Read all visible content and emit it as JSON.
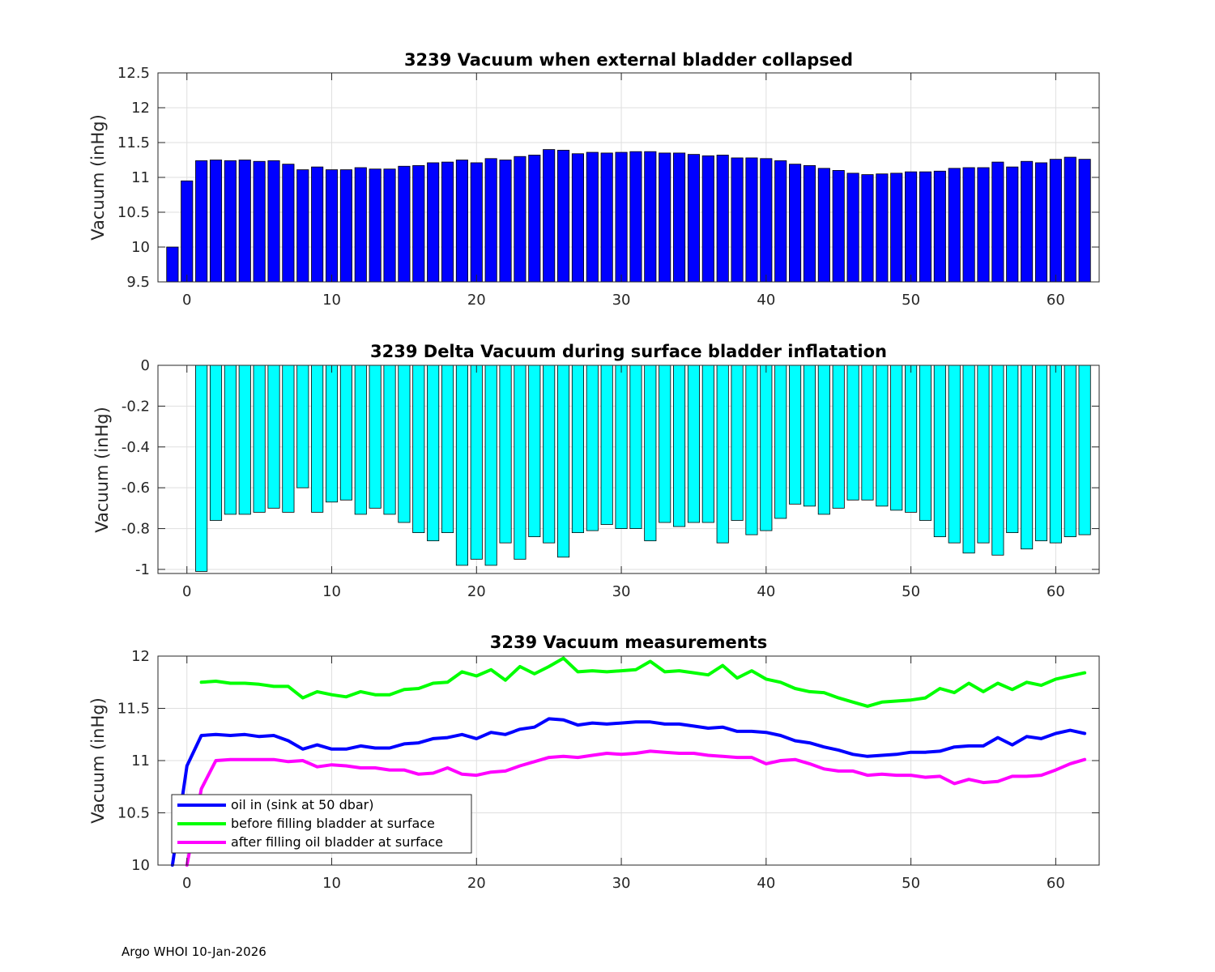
{
  "footer": "Argo WHOI 10-Jan-2026",
  "colors": {
    "bar_top": "#0000ff",
    "bar_mid": "#00ffff",
    "oil_in": "#0000ff",
    "before_fill": "#00ff00",
    "after_fill": "#ff00ff",
    "grid": "#dfdfdf"
  },
  "chart_data": [
    {
      "type": "bar",
      "title": "3239 Vacuum when external bladder collapsed",
      "xlabel": "",
      "ylabel": "Vacuum (inHg)",
      "xlim": [
        -2,
        63
      ],
      "ylim": [
        9.5,
        12.5
      ],
      "grid": true,
      "xticks": [
        0,
        10,
        20,
        30,
        40,
        50,
        60
      ],
      "yticks": [
        9.5,
        10,
        10.5,
        11,
        11.5,
        12,
        12.5
      ],
      "ytick_labels": [
        "9.5",
        "10",
        "10.5",
        "11",
        "11.5",
        "12",
        "12.5"
      ],
      "x": [
        -1,
        0,
        1,
        2,
        3,
        4,
        5,
        6,
        7,
        8,
        9,
        10,
        11,
        12,
        13,
        14,
        15,
        16,
        17,
        18,
        19,
        20,
        21,
        22,
        23,
        24,
        25,
        26,
        27,
        28,
        29,
        30,
        31,
        32,
        33,
        34,
        35,
        36,
        37,
        38,
        39,
        40,
        41,
        42,
        43,
        44,
        45,
        46,
        47,
        48,
        49,
        50,
        51,
        52,
        53,
        54,
        55,
        56,
        57,
        58,
        59,
        60,
        61,
        62
      ],
      "values": [
        10.0,
        10.95,
        11.24,
        11.25,
        11.24,
        11.25,
        11.23,
        11.24,
        11.19,
        11.11,
        11.15,
        11.11,
        11.11,
        11.14,
        11.12,
        11.12,
        11.16,
        11.17,
        11.21,
        11.22,
        11.25,
        11.21,
        11.27,
        11.25,
        11.3,
        11.32,
        11.4,
        11.39,
        11.34,
        11.36,
        11.35,
        11.36,
        11.37,
        11.37,
        11.35,
        11.35,
        11.33,
        11.31,
        11.32,
        11.28,
        11.28,
        11.27,
        11.24,
        11.19,
        11.17,
        11.13,
        11.1,
        11.06,
        11.04,
        11.05,
        11.06,
        11.08,
        11.08,
        11.09,
        11.13,
        11.14,
        11.14,
        11.22,
        11.15,
        11.23,
        11.21,
        11.26,
        11.29,
        11.26
      ]
    },
    {
      "type": "bar",
      "title": "3239 Delta Vacuum during surface bladder inflatation",
      "xlabel": "",
      "ylabel": "Vacuum (inHg)",
      "xlim": [
        -2,
        63
      ],
      "ylim": [
        -1.02,
        0
      ],
      "grid": true,
      "xticks": [
        0,
        10,
        20,
        30,
        40,
        50,
        60
      ],
      "yticks": [
        -1,
        -0.8,
        -0.6,
        -0.4,
        -0.2,
        0
      ],
      "ytick_labels": [
        "-1",
        "-0.8",
        "-0.6",
        "-0.4",
        "-0.2",
        "0"
      ],
      "x": [
        1,
        2,
        3,
        4,
        5,
        6,
        7,
        8,
        9,
        10,
        11,
        12,
        13,
        14,
        15,
        16,
        17,
        18,
        19,
        20,
        21,
        22,
        23,
        24,
        25,
        26,
        27,
        28,
        29,
        30,
        31,
        32,
        33,
        34,
        35,
        36,
        37,
        38,
        39,
        40,
        41,
        42,
        43,
        44,
        45,
        46,
        47,
        48,
        49,
        50,
        51,
        52,
        53,
        54,
        55,
        56,
        57,
        58,
        59,
        60,
        61,
        62
      ],
      "values": [
        -1.01,
        -0.76,
        -0.73,
        -0.73,
        -0.72,
        -0.7,
        -0.72,
        -0.6,
        -0.72,
        -0.67,
        -0.66,
        -0.73,
        -0.7,
        -0.73,
        -0.77,
        -0.82,
        -0.86,
        -0.82,
        -0.98,
        -0.95,
        -0.98,
        -0.87,
        -0.95,
        -0.84,
        -0.87,
        -0.94,
        -0.82,
        -0.81,
        -0.78,
        -0.8,
        -0.8,
        -0.86,
        -0.77,
        -0.79,
        -0.77,
        -0.77,
        -0.87,
        -0.76,
        -0.83,
        -0.81,
        -0.75,
        -0.68,
        -0.69,
        -0.73,
        -0.7,
        -0.66,
        -0.66,
        -0.69,
        -0.71,
        -0.72,
        -0.76,
        -0.84,
        -0.87,
        -0.92,
        -0.87,
        -0.93,
        -0.82,
        -0.9,
        -0.86,
        -0.87,
        -0.84,
        -0.83
      ]
    },
    {
      "type": "line",
      "title": "3239 Vacuum measurements",
      "xlabel": "",
      "ylabel": "Vacuum (inHg)",
      "xlim": [
        -2,
        63
      ],
      "ylim": [
        10,
        12
      ],
      "grid": true,
      "xticks": [
        0,
        10,
        20,
        30,
        40,
        50,
        60
      ],
      "yticks": [
        10,
        10.5,
        11,
        11.5,
        12
      ],
      "ytick_labels": [
        "10",
        "10.5",
        "11",
        "11.5",
        "12"
      ],
      "legend_position": "bottom-left",
      "series": [
        {
          "name": "oil in (sink at 50 dbar)",
          "color": "#0000ff",
          "x": [
            -1,
            0,
            1,
            2,
            3,
            4,
            5,
            6,
            7,
            8,
            9,
            10,
            11,
            12,
            13,
            14,
            15,
            16,
            17,
            18,
            19,
            20,
            21,
            22,
            23,
            24,
            25,
            26,
            27,
            28,
            29,
            30,
            31,
            32,
            33,
            34,
            35,
            36,
            37,
            38,
            39,
            40,
            41,
            42,
            43,
            44,
            45,
            46,
            47,
            48,
            49,
            50,
            51,
            52,
            53,
            54,
            55,
            56,
            57,
            58,
            59,
            60,
            61,
            62
          ],
          "values": [
            10.0,
            10.95,
            11.24,
            11.25,
            11.24,
            11.25,
            11.23,
            11.24,
            11.19,
            11.11,
            11.15,
            11.11,
            11.11,
            11.14,
            11.12,
            11.12,
            11.16,
            11.17,
            11.21,
            11.22,
            11.25,
            11.21,
            11.27,
            11.25,
            11.3,
            11.32,
            11.4,
            11.39,
            11.34,
            11.36,
            11.35,
            11.36,
            11.37,
            11.37,
            11.35,
            11.35,
            11.33,
            11.31,
            11.32,
            11.28,
            11.28,
            11.27,
            11.24,
            11.19,
            11.17,
            11.13,
            11.1,
            11.06,
            11.04,
            11.05,
            11.06,
            11.08,
            11.08,
            11.09,
            11.13,
            11.14,
            11.14,
            11.22,
            11.15,
            11.23,
            11.21,
            11.26,
            11.29,
            11.26
          ]
        },
        {
          "name": "before filling bladder at surface",
          "color": "#00ff00",
          "x": [
            1,
            2,
            3,
            4,
            5,
            6,
            7,
            8,
            9,
            10,
            11,
            12,
            13,
            14,
            15,
            16,
            17,
            18,
            19,
            20,
            21,
            22,
            23,
            24,
            25,
            26,
            27,
            28,
            29,
            30,
            31,
            32,
            33,
            34,
            35,
            36,
            37,
            38,
            39,
            40,
            41,
            42,
            43,
            44,
            45,
            46,
            47,
            48,
            49,
            50,
            51,
            52,
            53,
            54,
            55,
            56,
            57,
            58,
            59,
            60,
            61,
            62
          ],
          "values": [
            11.75,
            11.76,
            11.74,
            11.74,
            11.73,
            11.71,
            11.71,
            11.6,
            11.66,
            11.63,
            11.61,
            11.66,
            11.63,
            11.63,
            11.68,
            11.69,
            11.74,
            11.75,
            11.85,
            11.81,
            11.87,
            11.77,
            11.9,
            11.83,
            11.9,
            11.98,
            11.85,
            11.86,
            11.85,
            11.86,
            11.87,
            11.95,
            11.85,
            11.86,
            11.84,
            11.82,
            11.91,
            11.79,
            11.86,
            11.78,
            11.75,
            11.69,
            11.66,
            11.65,
            11.6,
            11.56,
            11.52,
            11.56,
            11.57,
            11.58,
            11.6,
            11.69,
            11.65,
            11.74,
            11.66,
            11.74,
            11.68,
            11.75,
            11.72,
            11.78,
            11.81,
            11.84
          ]
        },
        {
          "name": "after filling oil bladder at surface",
          "color": "#ff00ff",
          "x": [
            0,
            1,
            2,
            3,
            4,
            5,
            6,
            7,
            8,
            9,
            10,
            11,
            12,
            13,
            14,
            15,
            16,
            17,
            18,
            19,
            20,
            21,
            22,
            23,
            24,
            25,
            26,
            27,
            28,
            29,
            30,
            31,
            32,
            33,
            34,
            35,
            36,
            37,
            38,
            39,
            40,
            41,
            42,
            43,
            44,
            45,
            46,
            47,
            48,
            49,
            50,
            51,
            52,
            53,
            54,
            55,
            56,
            57,
            58,
            59,
            60,
            61,
            62
          ],
          "values": [
            10.0,
            10.73,
            11.0,
            11.01,
            11.01,
            11.01,
            11.01,
            10.99,
            11.0,
            10.94,
            10.96,
            10.95,
            10.93,
            10.93,
            10.91,
            10.91,
            10.87,
            10.88,
            10.93,
            10.87,
            10.86,
            10.89,
            10.9,
            10.95,
            10.99,
            11.03,
            11.04,
            11.03,
            11.05,
            11.07,
            11.06,
            11.07,
            11.09,
            11.08,
            11.07,
            11.07,
            11.05,
            11.04,
            11.03,
            11.03,
            10.97,
            11.0,
            11.01,
            10.97,
            10.92,
            10.9,
            10.9,
            10.86,
            10.87,
            10.86,
            10.86,
            10.84,
            10.85,
            10.78,
            10.82,
            10.79,
            10.8,
            10.85,
            10.85,
            10.86,
            10.91,
            10.97,
            11.01
          ]
        }
      ]
    }
  ]
}
